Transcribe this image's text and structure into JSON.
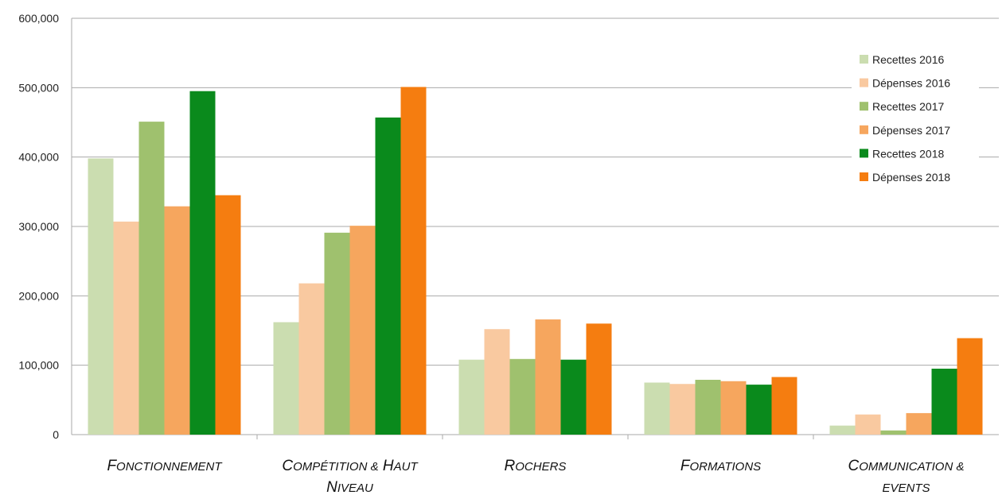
{
  "chart_data": {
    "type": "bar",
    "categories": [
      [
        "Fonctionnement"
      ],
      [
        "Compétition & Haut",
        "Niveau"
      ],
      [
        "Rochers"
      ],
      [
        "Formations"
      ],
      [
        "Communication &",
        "events"
      ]
    ],
    "ylim": [
      0,
      600000
    ],
    "yticks": [
      "0",
      "100,000",
      "200,000",
      "300,000",
      "400,000",
      "500,000",
      "600,000"
    ],
    "grid": true,
    "legend_position": "top-right",
    "series": [
      {
        "name": "Recettes 2016",
        "color": "#cbddb0",
        "values": [
          398000,
          162000,
          108000,
          75000,
          13000
        ]
      },
      {
        "name": "Dépenses 2016",
        "color": "#f9c9a0",
        "values": [
          307000,
          218000,
          152000,
          73000,
          29000
        ]
      },
      {
        "name": "Recettes 2017",
        "color": "#9fc16e",
        "values": [
          451000,
          291000,
          109000,
          79000,
          6000
        ]
      },
      {
        "name": "Dépenses 2017",
        "color": "#f6a65e",
        "values": [
          329000,
          301000,
          166000,
          77000,
          31000
        ]
      },
      {
        "name": "Recettes 2018",
        "color": "#0a8a1c",
        "values": [
          495000,
          457000,
          108000,
          72000,
          95000
        ]
      },
      {
        "name": "Dépenses 2018",
        "color": "#f57d10",
        "values": [
          345000,
          501000,
          160000,
          83000,
          139000
        ]
      }
    ]
  }
}
